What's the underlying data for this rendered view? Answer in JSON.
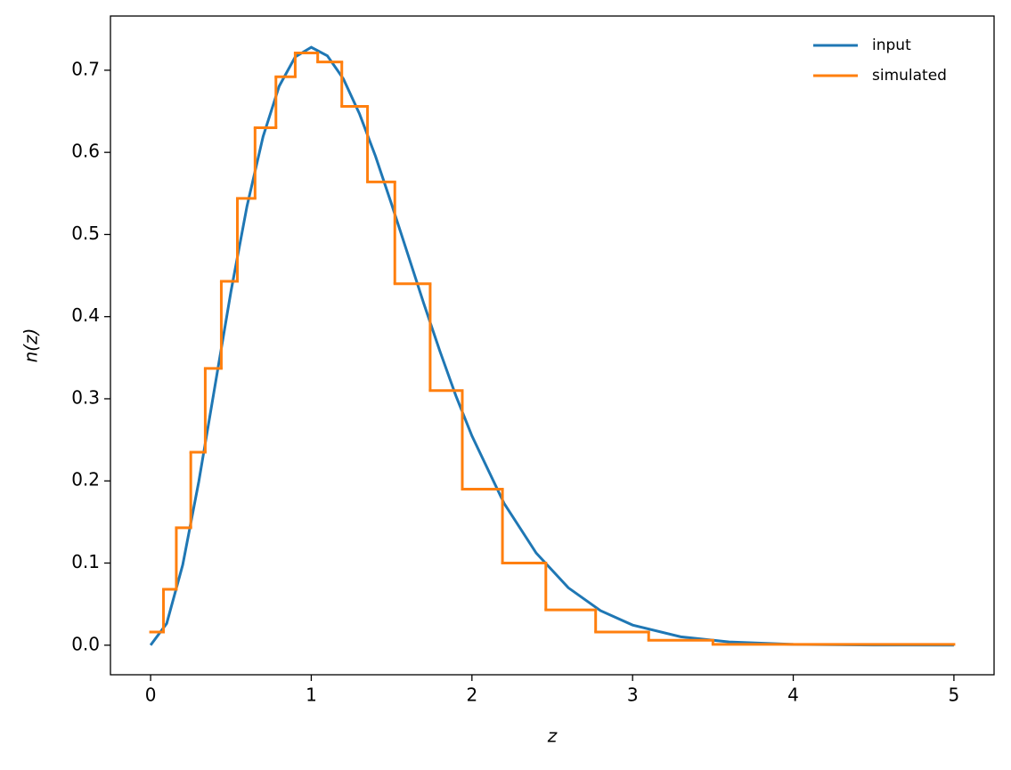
{
  "chart_data": {
    "type": "line",
    "xlabel": "z",
    "ylabel": "n(z)",
    "xlim": [
      -0.25,
      5.25
    ],
    "ylim": [
      -0.036,
      0.766
    ],
    "xticks": [
      0,
      1,
      2,
      3,
      4,
      5
    ],
    "yticks": [
      {
        "value": 0,
        "label": "0.0"
      },
      0.1,
      0.2,
      0.3,
      0.4,
      0.5,
      0.6,
      0.7
    ],
    "legend": "upper right",
    "series": [
      {
        "name": "input",
        "color": "#1f77b4",
        "type": "line",
        "x": [
          0,
          0.1,
          0.2,
          0.3,
          0.4,
          0.5,
          0.6,
          0.7,
          0.8,
          0.9,
          1.0,
          1.1,
          1.2,
          1.3,
          1.4,
          1.5,
          1.6,
          1.7,
          1.8,
          1.9,
          2.0,
          2.2,
          2.4,
          2.6,
          2.8,
          3.0,
          3.3,
          3.6,
          4.0,
          4.5,
          5.0
        ],
        "values": [
          0,
          0.0264,
          0.0979,
          0.1994,
          0.315,
          0.4305,
          0.5346,
          0.6193,
          0.6805,
          0.7162,
          0.7279,
          0.7176,
          0.6895,
          0.647,
          0.5952,
          0.5368,
          0.4766,
          0.4161,
          0.3583,
          0.3037,
          0.2548,
          0.1727,
          0.1122,
          0.0699,
          0.0421,
          0.0245,
          0.0102,
          0.004,
          0.001,
          0.0002,
          0
        ]
      },
      {
        "name": "simulated",
        "color": "#ff7f0e",
        "type": "step",
        "bins": [
          0,
          0.08,
          0.16,
          0.25,
          0.34,
          0.44,
          0.54,
          0.65,
          0.78,
          0.9,
          1.04,
          1.19,
          1.35,
          1.52,
          1.74,
          1.94,
          2.19,
          2.46,
          2.77,
          3.1,
          3.5,
          5.0
        ],
        "values": [
          0.016,
          0.068,
          0.143,
          0.235,
          0.337,
          0.443,
          0.544,
          0.63,
          0.692,
          0.721,
          0.71,
          0.656,
          0.564,
          0.44,
          0.31,
          0.19,
          0.1,
          0.043,
          0.016,
          0.006,
          0.001
        ]
      }
    ]
  }
}
